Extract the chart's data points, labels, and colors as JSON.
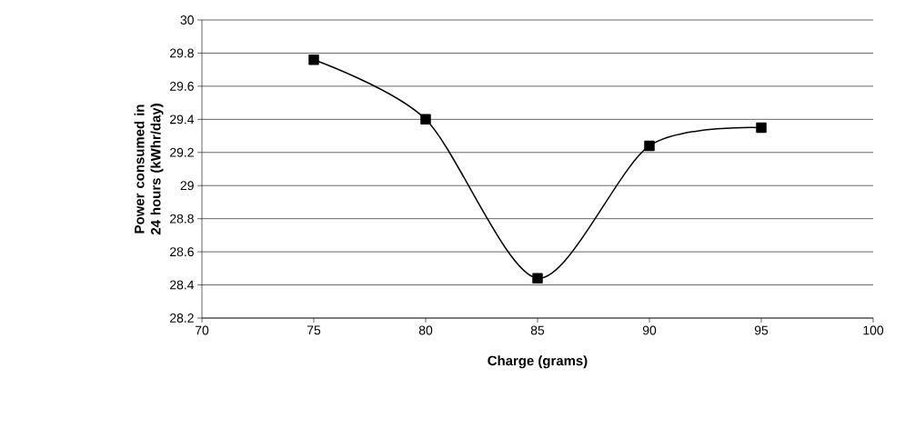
{
  "chart_data": {
    "type": "line",
    "xlabel": "Charge (grams)",
    "ylabel": "Power consumed in 24 hours (kWhr/day)",
    "x": [
      75,
      80,
      85,
      90,
      95
    ],
    "series": [
      {
        "color": "#000000",
        "values": [
          29.76,
          29.4,
          28.44,
          29.24,
          29.35
        ]
      }
    ],
    "xlim": [
      70,
      100
    ],
    "xticks": [
      70,
      75,
      80,
      85,
      90,
      95,
      100
    ],
    "ylim": [
      28.2,
      30
    ],
    "yticks": [
      28.2,
      28.4,
      28.6,
      28.8,
      29,
      29.2,
      29.4,
      29.6,
      29.8,
      30
    ],
    "grid": "y",
    "marker": "square",
    "line_style": "solid"
  }
}
